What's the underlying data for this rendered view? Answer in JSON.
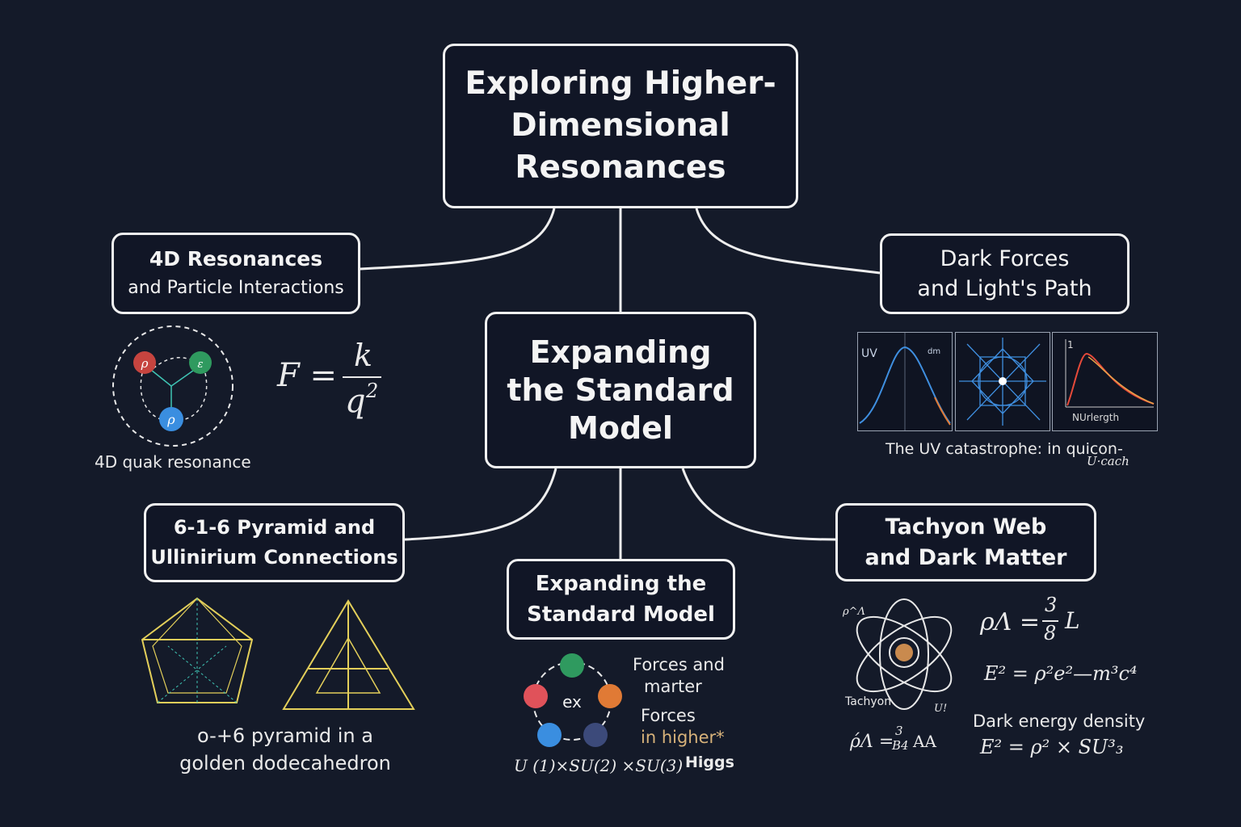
{
  "title": {
    "line1": "Exploring Higher-",
    "line2": "Dimensional",
    "line3": "Resonances"
  },
  "center": {
    "line1": "Expanding",
    "line2": "the Standard",
    "line3": "Model"
  },
  "nodes": {
    "resonances_4d": {
      "line1": "4D Resonances",
      "line2": "and Particle Interactions"
    },
    "dark_forces": {
      "line1": "Dark Forces",
      "line2": "and Light's Path"
    },
    "pyramid": {
      "line1": "6-1-6 Pyramid and",
      "line2": "Ullinirium Connections"
    },
    "standard_model": {
      "line1": "Expanding the",
      "line2": "Standard Model"
    },
    "tachyon": {
      "line1": "Tachyon Web",
      "line2": "and Dark Matter"
    }
  },
  "resonance_panel": {
    "caption": "4D quak resonance",
    "particle_labels": [
      "ρ",
      "ε",
      "ρ"
    ],
    "formula": {
      "lhs": "F =",
      "numerator": "k",
      "denominator": "q",
      "exponent": "2"
    }
  },
  "dark_forces_panel": {
    "plot1_labels": [
      "UV",
      "dm"
    ],
    "plot2": "",
    "plot3_labels": [
      "1",
      "NUrlergth"
    ],
    "caption_line1": "The UV catastrophe: in quicon-",
    "caption_line2": "U·cach"
  },
  "pyramid_panel": {
    "caption_line1": "o-+6 pyramid in a",
    "caption_line2": "golden dodecahedron"
  },
  "standard_model_panel": {
    "center_label": "ex",
    "text1_line1": "Forces and",
    "text1_line2": "marter",
    "text2_line1": "Forces",
    "text2_line2": "in higher*",
    "gauge": "U (1)×SU(2) ×SU(3)",
    "higgs": "Higgs",
    "colors": [
      "#2f9a5f",
      "#e0525a",
      "#e07a35",
      "#3a8ee0",
      "#3c4a7a"
    ]
  },
  "tachyon_panel": {
    "atom_label_top": "ρ^Λ",
    "atom_label": "Tachyon",
    "atom_label_bottom": "U!",
    "eq1": {
      "lhs": "ρΛ =",
      "num": "3",
      "den": "8",
      "rhs": "L"
    },
    "eq2": "E² = ρ²e²—m³c⁴",
    "eq3": {
      "lhs": "ρ́Λ =",
      "num": "3",
      "den": "B4",
      "rhs": "AA"
    },
    "dark_energy_label": "Dark energy density",
    "eq4": "E² = ρ² × SU³₃"
  }
}
